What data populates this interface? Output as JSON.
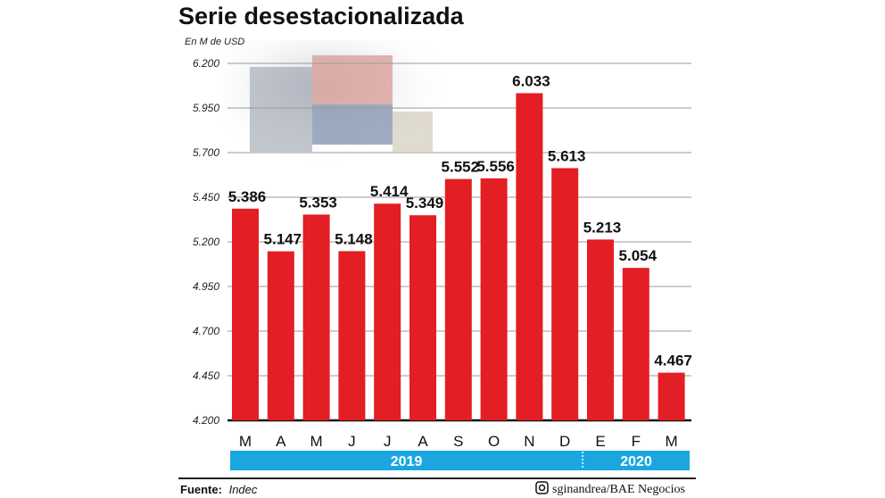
{
  "chart_data": {
    "type": "bar",
    "title": "Serie desestacionalizada",
    "ylabel": "En M de USD",
    "categories": [
      "M",
      "A",
      "M",
      "J",
      "J",
      "A",
      "S",
      "O",
      "N",
      "D",
      "E",
      "F",
      "M"
    ],
    "values": [
      5386,
      5147,
      5353,
      5148,
      5414,
      5349,
      5552,
      5556,
      6033,
      5613,
      5213,
      5054,
      4467
    ],
    "value_labels": [
      "5.386",
      "5.147",
      "5.353",
      "5.148",
      "5.414",
      "5.349",
      "5.552",
      "5.556",
      "6.033",
      "5.613",
      "5.213",
      "5.054",
      "4.467"
    ],
    "ylim": [
      4200,
      6200
    ],
    "yticks": [
      6200,
      5950,
      5700,
      5450,
      5200,
      4950,
      4700,
      4450,
      4200
    ],
    "ytick_labels": [
      "6.200",
      "5.950",
      "5.700",
      "5.450",
      "5.200",
      "4.950",
      "4.700",
      "4.450",
      "4.200"
    ],
    "grid": true,
    "bar_color": "#e31e24",
    "year_groups": [
      {
        "label": "2019",
        "count": 10
      },
      {
        "label": "2020",
        "count": 3
      }
    ],
    "year_band_color": "#1aa7e0"
  },
  "footer": {
    "source_label": "Fuente:",
    "source": "Indec",
    "credit": "sginandrea/BAE Negocios",
    "credit_icon": "instagram-icon"
  }
}
